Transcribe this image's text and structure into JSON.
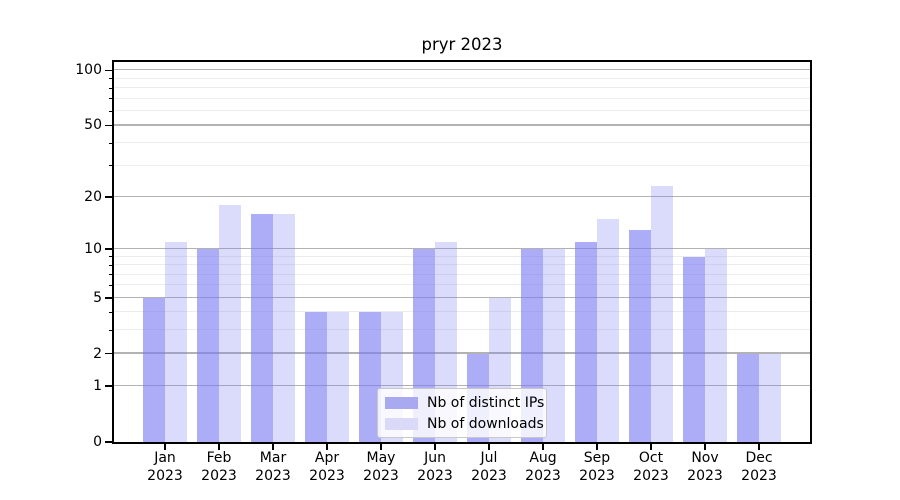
{
  "title": "pryr 2023",
  "chart_data": {
    "type": "bar",
    "title": "pryr 2023",
    "x_year": "2023",
    "categories": [
      "Jan",
      "Feb",
      "Mar",
      "Apr",
      "May",
      "Jun",
      "Jul",
      "Aug",
      "Sep",
      "Oct",
      "Nov",
      "Dec"
    ],
    "series": [
      {
        "name": "Nb of distinct IPs",
        "color": "rgba(122,122,242,0.62)",
        "swatch": "#a9a9f2",
        "values": [
          5,
          10,
          16,
          4,
          4,
          10,
          2,
          10,
          11,
          13,
          9,
          2
        ]
      },
      {
        "name": "Nb of downloads",
        "color": "rgba(122,122,242,0.27)",
        "swatch": "#dadaf8",
        "values": [
          11,
          18,
          16,
          4,
          4,
          11,
          5,
          10,
          15,
          23,
          10,
          2
        ]
      }
    ],
    "scale": "log1p",
    "ylim": [
      0,
      115
    ],
    "y_ticks_major": [
      0,
      1,
      2,
      5,
      10,
      20,
      50,
      100
    ],
    "y_ticks_minor": [
      3,
      4,
      6,
      7,
      8,
      9,
      30,
      40,
      60,
      70,
      80,
      90
    ],
    "grid": true,
    "legend_position": "lower center",
    "colors": {
      "spine": "#000000",
      "grid_major": "#b2b2b2",
      "grid_minor": "#ececec"
    }
  }
}
